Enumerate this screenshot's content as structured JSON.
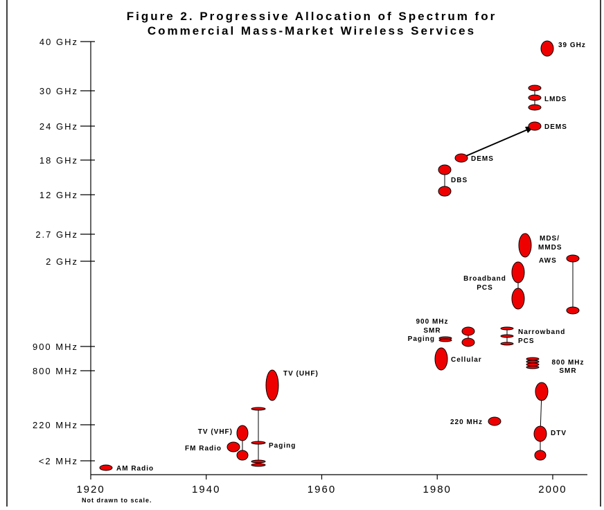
{
  "chart_data": {
    "type": "scatter",
    "title": "Figure 2. Progressive Allocation of Spectrum for",
    "subtitle": "Commercial Mass-Market Wireless Services",
    "note": "Not drawn to scale.",
    "x_ticks": [
      "1920",
      "1940",
      "1960",
      "1980",
      "2000"
    ],
    "x_range": [
      1920,
      2006
    ],
    "y_scale": "categorical (not drawn to scale)",
    "y_ticks": [
      "<2 MHz",
      "220 MHz",
      "800 MHz",
      "900 MHz",
      "2 GHz",
      "2.7 GHz",
      "12 GHz",
      "18 GHz",
      "24 GHz",
      "30 GHz",
      "40 GHz"
    ],
    "colors": {
      "marker_fill": "#ee0000",
      "marker_stroke": "#000000"
    },
    "services": [
      {
        "label": "AM Radio",
        "year": 1923
      },
      {
        "label": "FM Radio",
        "year": 1945
      },
      {
        "label": "TV (VHF)",
        "year": 1947
      },
      {
        "label": "Paging",
        "year": 1950
      },
      {
        "label": "TV (UHF)",
        "year": 1952
      },
      {
        "label": "DBS",
        "year": 1982
      },
      {
        "label": "DEMS",
        "year": 1985
      },
      {
        "label": "DEMS",
        "year": 1998
      },
      {
        "label": "Cellular",
        "year": 1981
      },
      {
        "label": "900 MHz",
        "year": 1985
      },
      {
        "label": "SMR",
        "year": 1985
      },
      {
        "label": "Paging",
        "year": 1982
      },
      {
        "label": "220 MHz",
        "year": 1990
      },
      {
        "label": "Narrowband",
        "year": 1993
      },
      {
        "label": "PCS",
        "year": 1993
      },
      {
        "label": "Broadband",
        "year": 1994
      },
      {
        "label": "PCS",
        "year": 1994
      },
      {
        "label": "MDS/",
        "year": 1996
      },
      {
        "label": "MMDS",
        "year": 1996
      },
      {
        "label": "800 MHz",
        "year": 1997
      },
      {
        "label": "SMR",
        "year": 1997
      },
      {
        "label": "LMDS",
        "year": 1998
      },
      {
        "label": "AWS",
        "year": 2004
      },
      {
        "label": "DTV",
        "year": 1998
      },
      {
        "label": "39 GHz",
        "year": 2000
      }
    ]
  }
}
